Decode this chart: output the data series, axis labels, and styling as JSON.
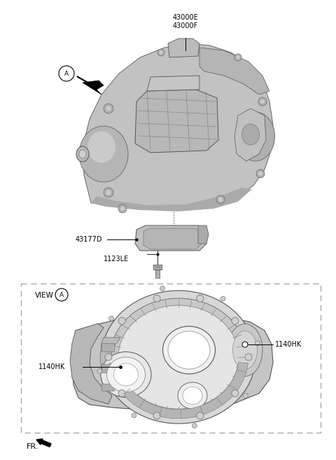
{
  "bg_color": "#ffffff",
  "colors": {
    "text": "#000000",
    "body_fill": "#b8b8b8",
    "body_edge": "#555555",
    "dashed_box": "#aaaaaa",
    "light_gray": "#d0d0d0",
    "dark_gray": "#888888",
    "med_gray": "#aaaaaa",
    "very_light": "#e0e0e0",
    "shadow": "#999999"
  },
  "font_sizes": {
    "part_label": 7.0,
    "view_label": 7.5,
    "fr_label": 8.0,
    "circle_letter": 6.5
  },
  "labels": {
    "part1": "43000E",
    "part2": "43000F",
    "part3": "43177D",
    "part4": "1123LE",
    "part5": "1140HK",
    "view": "VIEW",
    "fr": "FR."
  }
}
